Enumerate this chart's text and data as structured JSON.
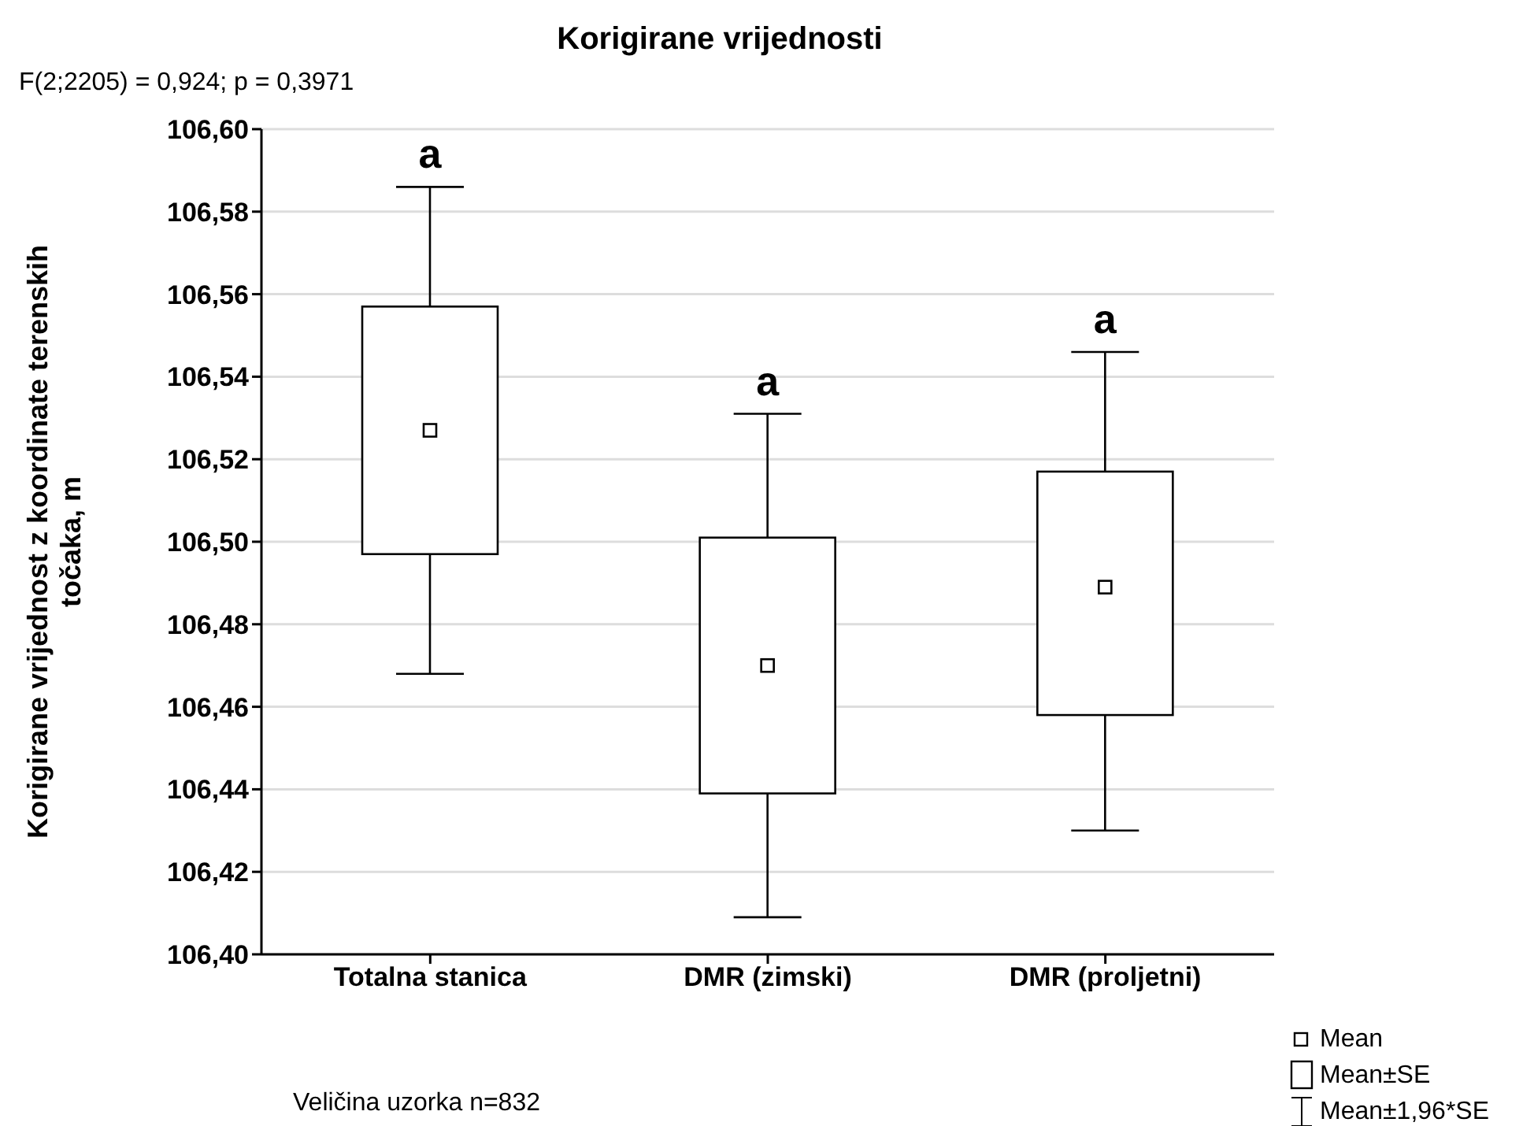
{
  "chart_data": {
    "type": "box",
    "title": "Korigirane vrijednosti",
    "ylabel": "Korigirane vrijednost z koordinate terenskih točaka, m",
    "categories": [
      "Totalna stanica",
      "DMR (zimski)",
      "DMR (proljetni)"
    ],
    "boxes": [
      {
        "low": 106.468,
        "q1": 106.497,
        "median": 106.527,
        "q3": 106.557,
        "high": 106.586
      },
      {
        "low": 106.409,
        "q1": 106.439,
        "median": 106.47,
        "q3": 106.501,
        "high": 106.531
      },
      {
        "low": 106.43,
        "q1": 106.458,
        "median": 106.489,
        "q3": 106.517,
        "high": 106.546
      }
    ],
    "color": "#000000",
    "ylim": [
      106.4,
      106.6
    ],
    "yticks": [
      {
        "value": 106.4,
        "label": "106,40"
      },
      {
        "value": 106.42,
        "label": "106,42"
      },
      {
        "value": 106.44,
        "label": "106,44"
      },
      {
        "value": 106.46,
        "label": "106,46"
      },
      {
        "value": 106.48,
        "label": "106,48"
      },
      {
        "value": 106.5,
        "label": "106,50"
      },
      {
        "value": 106.52,
        "label": "106,52"
      },
      {
        "value": 106.54,
        "label": "106,54"
      },
      {
        "value": 106.56,
        "label": "106,56"
      },
      {
        "value": 106.58,
        "label": "106,58"
      },
      {
        "value": 106.6,
        "label": "106,60"
      }
    ],
    "grid": "y",
    "annotations": [
      "F(2;2205) = 0,924; p = 0,3971",
      "Veličina uzorka n=832",
      "a",
      "a",
      "a",
      "Mean",
      "Mean±SE",
      "Mean±1,96*SE"
    ]
  }
}
